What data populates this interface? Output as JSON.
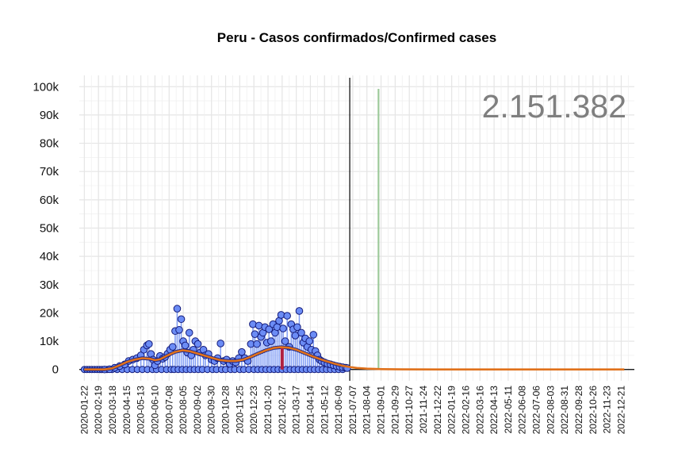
{
  "chart_data": {
    "type": "scatter",
    "title": "Peru - Casos confirmados/Confirmed cases",
    "total_label": "2.151.382",
    "y_ticks": [
      {
        "value": 0,
        "label": "0"
      },
      {
        "value": 10000,
        "label": "10k"
      },
      {
        "value": 20000,
        "label": "20k"
      },
      {
        "value": 30000,
        "label": "30k"
      },
      {
        "value": 40000,
        "label": "40k"
      },
      {
        "value": 50000,
        "label": "50k"
      },
      {
        "value": 60000,
        "label": "60k"
      },
      {
        "value": 70000,
        "label": "70k"
      },
      {
        "value": 80000,
        "label": "80k"
      },
      {
        "value": 90000,
        "label": "90k"
      },
      {
        "value": 100000,
        "label": "100k"
      }
    ],
    "ylim": [
      -4000,
      104000
    ],
    "xlim_days": [
      -10,
      1090
    ],
    "x_ticks": [
      "2020-01-22",
      "2020-02-19",
      "2020-03-18",
      "2020-04-15",
      "2020-05-13",
      "2020-06-10",
      "2020-07-08",
      "2020-08-05",
      "2020-09-02",
      "2020-09-30",
      "2020-10-28",
      "2020-11-25",
      "2020-12-23",
      "2021-01-20",
      "2021-02-17",
      "2021-03-17",
      "2021-04-14",
      "2021-05-12",
      "2021-06-09",
      "2021-07-07",
      "2021-08-04",
      "2021-09-01",
      "2021-09-29",
      "2021-10-27",
      "2021-11-24",
      "2021-12-22",
      "2022-01-19",
      "2022-02-16",
      "2022-03-16",
      "2022-04-13",
      "2022-05-11",
      "2022-06-08",
      "2022-07-06",
      "2022-08-03",
      "2022-08-31",
      "2022-09-28",
      "2022-10-26",
      "2022-11-23",
      "2022-12-21"
    ],
    "x_tick_step_days": 28,
    "last_data_day": 521,
    "vertical_line_day": 526,
    "highlight_line_day": 583,
    "daily_points": [
      [
        40,
        0
      ],
      [
        50,
        100
      ],
      [
        60,
        600
      ],
      [
        70,
        1200
      ],
      [
        80,
        1800
      ],
      [
        88,
        3000
      ],
      [
        96,
        3500
      ],
      [
        104,
        4000
      ],
      [
        112,
        5000
      ],
      [
        118,
        7000
      ],
      [
        124,
        8500
      ],
      [
        128,
        9000
      ],
      [
        132,
        5500
      ],
      [
        136,
        3500
      ],
      [
        140,
        1500
      ],
      [
        145,
        3000
      ],
      [
        150,
        4800
      ],
      [
        155,
        3800
      ],
      [
        160,
        4400
      ],
      [
        165,
        5600
      ],
      [
        170,
        7000
      ],
      [
        175,
        8000
      ],
      [
        180,
        13600
      ],
      [
        184,
        21500
      ],
      [
        188,
        14000
      ],
      [
        192,
        17800
      ],
      [
        196,
        10000
      ],
      [
        200,
        8500
      ],
      [
        204,
        6000
      ],
      [
        208,
        13000
      ],
      [
        212,
        5000
      ],
      [
        216,
        7000
      ],
      [
        220,
        10000
      ],
      [
        225,
        9000
      ],
      [
        230,
        6000
      ],
      [
        236,
        7000
      ],
      [
        240,
        5000
      ],
      [
        246,
        5500
      ],
      [
        252,
        3500
      ],
      [
        258,
        3000
      ],
      [
        264,
        4000
      ],
      [
        270,
        9200
      ],
      [
        276,
        3000
      ],
      [
        282,
        3500
      ],
      [
        288,
        2000
      ],
      [
        294,
        3000
      ],
      [
        300,
        2500
      ],
      [
        306,
        4000
      ],
      [
        312,
        6200
      ],
      [
        318,
        4000
      ],
      [
        324,
        3000
      ],
      [
        330,
        9000
      ],
      [
        334,
        16000
      ],
      [
        338,
        12500
      ],
      [
        342,
        9000
      ],
      [
        346,
        15500
      ],
      [
        350,
        11500
      ],
      [
        354,
        13000
      ],
      [
        358,
        15000
      ],
      [
        362,
        9500
      ],
      [
        366,
        14200
      ],
      [
        370,
        10000
      ],
      [
        374,
        16000
      ],
      [
        378,
        13000
      ],
      [
        382,
        15000
      ],
      [
        386,
        17200
      ],
      [
        390,
        19300
      ],
      [
        394,
        14500
      ],
      [
        398,
        10000
      ],
      [
        402,
        19000
      ],
      [
        406,
        8000
      ],
      [
        410,
        16000
      ],
      [
        414,
        14200
      ],
      [
        418,
        12000
      ],
      [
        422,
        15000
      ],
      [
        426,
        20700
      ],
      [
        430,
        13000
      ],
      [
        434,
        9500
      ],
      [
        438,
        11000
      ],
      [
        442,
        8000
      ],
      [
        446,
        10000
      ],
      [
        450,
        7000
      ],
      [
        454,
        12300
      ],
      [
        458,
        6500
      ],
      [
        462,
        5000
      ],
      [
        466,
        3500
      ],
      [
        470,
        3000
      ],
      [
        476,
        2500
      ],
      [
        482,
        2000
      ],
      [
        488,
        1800
      ],
      [
        494,
        1500
      ],
      [
        500,
        1200
      ],
      [
        506,
        1000
      ],
      [
        512,
        800
      ],
      [
        518,
        600
      ],
      [
        521,
        500
      ]
    ],
    "zero_points": [
      0,
      5,
      10,
      15,
      20,
      25,
      30,
      35,
      45,
      55,
      65,
      75,
      85,
      95,
      105,
      115,
      125,
      135,
      143,
      153,
      163,
      172,
      178,
      186,
      194,
      202,
      210,
      218,
      226,
      234,
      244,
      254,
      262,
      272,
      280,
      290,
      298,
      308,
      316,
      326,
      336,
      344,
      352,
      360,
      368,
      376,
      384,
      392,
      400,
      408,
      416,
      424,
      432,
      440,
      448,
      456,
      464,
      472,
      480,
      488,
      496,
      504,
      512
    ],
    "zero_point_value": 0,
    "smooth_curve": [
      [
        0,
        0
      ],
      [
        40,
        0
      ],
      [
        55,
        400
      ],
      [
        70,
        1500
      ],
      [
        85,
        2700
      ],
      [
        100,
        3500
      ],
      [
        115,
        4000
      ],
      [
        130,
        3800
      ],
      [
        140,
        3300
      ],
      [
        150,
        3600
      ],
      [
        165,
        5000
      ],
      [
        180,
        6200
      ],
      [
        195,
        6800
      ],
      [
        210,
        6400
      ],
      [
        225,
        5600
      ],
      [
        240,
        4800
      ],
      [
        255,
        4000
      ],
      [
        270,
        3300
      ],
      [
        285,
        3000
      ],
      [
        300,
        3000
      ],
      [
        315,
        3500
      ],
      [
        330,
        4500
      ],
      [
        345,
        5700
      ],
      [
        360,
        6800
      ],
      [
        375,
        7600
      ],
      [
        390,
        7900
      ],
      [
        405,
        7700
      ],
      [
        420,
        7000
      ],
      [
        435,
        5900
      ],
      [
        450,
        4800
      ],
      [
        465,
        3800
      ],
      [
        480,
        2900
      ],
      [
        495,
        2100
      ],
      [
        510,
        1400
      ],
      [
        525,
        900
      ],
      [
        540,
        550
      ],
      [
        560,
        280
      ],
      [
        590,
        120
      ],
      [
        630,
        50
      ],
      [
        700,
        20
      ],
      [
        800,
        10
      ],
      [
        1000,
        5
      ],
      [
        1070,
        4
      ]
    ],
    "colors": {
      "points_fill": "#6b8cf5",
      "points_stroke": "#131a7a",
      "smooth": "#e0711b",
      "average_dark": "#1f2a8c",
      "average_red": "#b02040",
      "highlight_line": "#9cc99a",
      "vertical_line": "#000000",
      "grid": "#e5e5e5",
      "total_text": "#7f7f7f"
    }
  }
}
